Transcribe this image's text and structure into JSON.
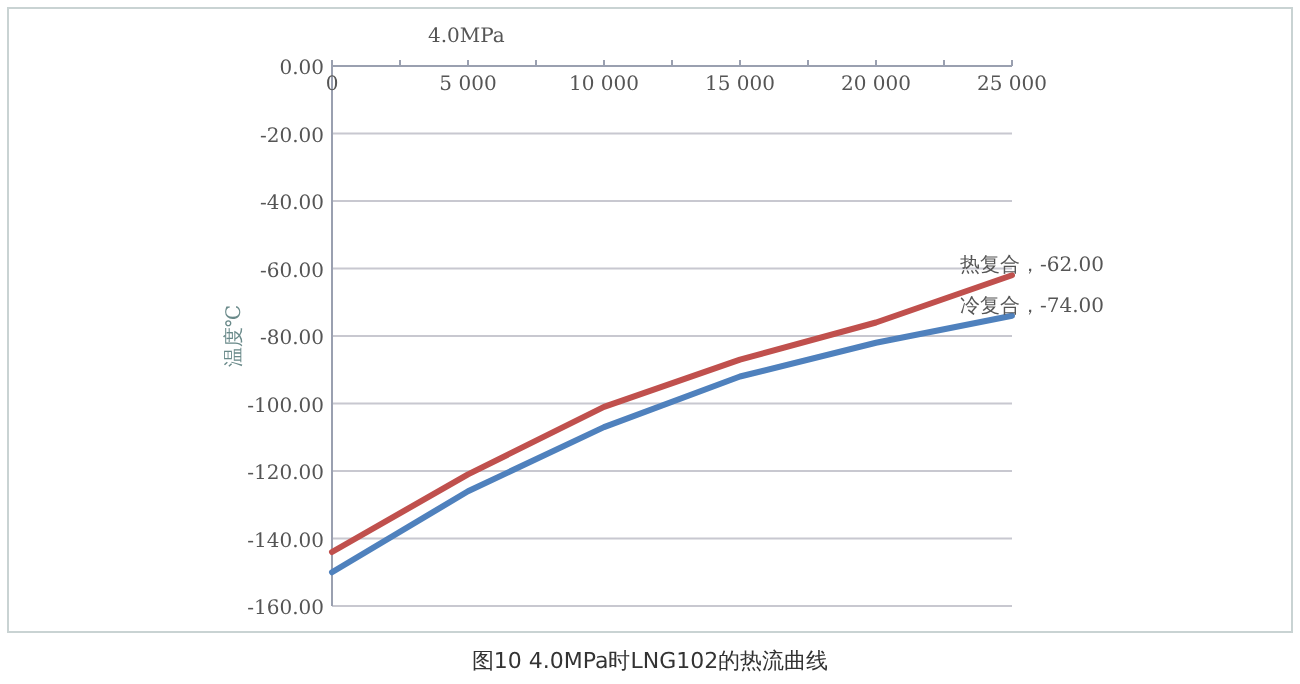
{
  "chart_data": {
    "type": "line",
    "title": "4.0MPa",
    "ylabel": "温度℃",
    "x": [
      0,
      5000,
      10000,
      15000,
      20000,
      25000
    ],
    "series": [
      {
        "color": "#c0504d",
        "values": [
          -144,
          -121,
          -101,
          -87,
          -76,
          -62
        ]
      },
      {
        "color": "#4f81bd",
        "values": [
          -150,
          -126,
          -107,
          -92,
          -82,
          -74
        ]
      }
    ],
    "xlim": [
      0,
      25000
    ],
    "xticks": [
      0,
      {
        "value": 2500,
        "label": null
      },
      {
        "value": 5000,
        "label": "5 000"
      },
      {
        "value": 7500,
        "label": null
      },
      {
        "value": 10000,
        "label": "10 000"
      },
      {
        "value": 12500,
        "label": null
      },
      {
        "value": 15000,
        "label": "15 000"
      },
      {
        "value": 17500,
        "label": null
      },
      {
        "value": 20000,
        "label": "20 000"
      },
      {
        "value": 22500,
        "label": null
      },
      {
        "value": 25000,
        "label": "25 000"
      }
    ],
    "ylim": [
      -160,
      0
    ],
    "yticks": [
      {
        "value": 0,
        "label": "0.00"
      },
      {
        "value": -20,
        "label": "-20.00"
      },
      {
        "value": -40,
        "label": "-40.00"
      },
      {
        "value": -60,
        "label": "-60.00"
      },
      {
        "value": -80,
        "label": "-80.00"
      },
      {
        "value": -100,
        "label": "-100.00"
      },
      {
        "value": -120,
        "label": "-120.00"
      },
      {
        "value": -140,
        "label": "-140.00"
      },
      {
        "value": -160,
        "label": "-160.00"
      }
    ],
    "grid": "y",
    "annotations": [
      {
        "text": "热复合，-62.00",
        "x": 25000,
        "y": -62
      },
      {
        "text": "冷复合，-74.00",
        "x": 25000,
        "y": -74
      },
      "图10  4.0MPa时LNG102的热流曲线"
    ]
  }
}
